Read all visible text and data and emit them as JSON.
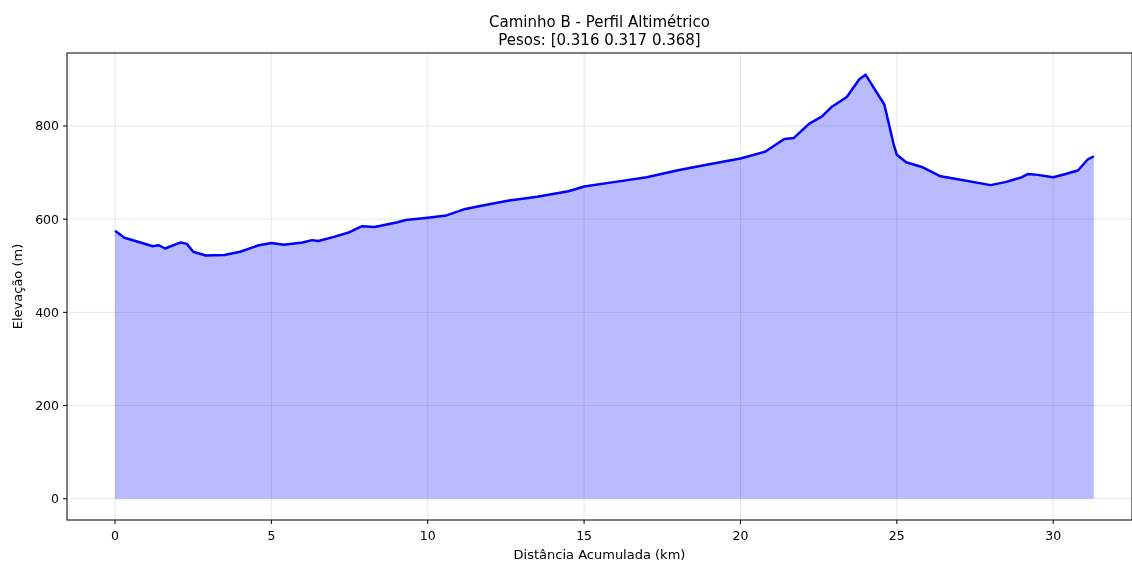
{
  "chart_data": {
    "type": "area",
    "title": "Caminho B - Perfil Altimétrico",
    "subtitle": "Pesos: [0.316 0.317 0.368]",
    "xlabel": "Distância Acumulada (km)",
    "ylabel": "Elevação (m)",
    "xlim": [
      -1.535,
      32.52
    ],
    "xticks": [
      0,
      5,
      10,
      15,
      20,
      25,
      30
    ],
    "ylim": [
      -45.5,
      956.5
    ],
    "yticks": [
      0,
      200,
      400,
      600,
      800
    ],
    "grid": true,
    "series": [
      {
        "color": "#0000ff",
        "x": [
          0,
          0.3,
          1.0,
          1.2,
          1.4,
          1.6,
          2.1,
          2.3,
          2.5,
          2.9,
          3.5,
          4.0,
          4.6,
          5.0,
          5.4,
          6.0,
          6.3,
          6.5,
          7.0,
          7.5,
          7.9,
          8.3,
          9.0,
          9.3,
          10.0,
          10.6,
          11.2,
          11.8,
          12.6,
          13.5,
          14.5,
          15.0,
          16.0,
          17.0,
          18.0,
          19.0,
          20.0,
          20.8,
          21.4,
          21.7,
          22.2,
          22.6,
          22.9,
          23.4,
          23.8,
          24.0,
          24.3,
          24.6,
          24.9,
          25.0,
          25.3,
          25.8,
          26.4,
          27.0,
          28.0,
          28.5,
          29.0,
          29.2,
          29.5,
          30.0,
          30.4,
          30.8,
          31.1,
          31.3
        ],
        "values": [
          575,
          560,
          546,
          542,
          544,
          537,
          550,
          547,
          530,
          522,
          523,
          530,
          544,
          549,
          545,
          550,
          555,
          553,
          562,
          572,
          585,
          583,
          593,
          598,
          603,
          608,
          622,
          630,
          640,
          648,
          660,
          670,
          680,
          690,
          705,
          718,
          730,
          745,
          772,
          774,
          805,
          820,
          840,
          862,
          900,
          910,
          878,
          846,
          760,
          738,
          722,
          712,
          692,
          685,
          673,
          680,
          690,
          697,
          695,
          690,
          697,
          705,
          728,
          735
        ]
      }
    ]
  }
}
